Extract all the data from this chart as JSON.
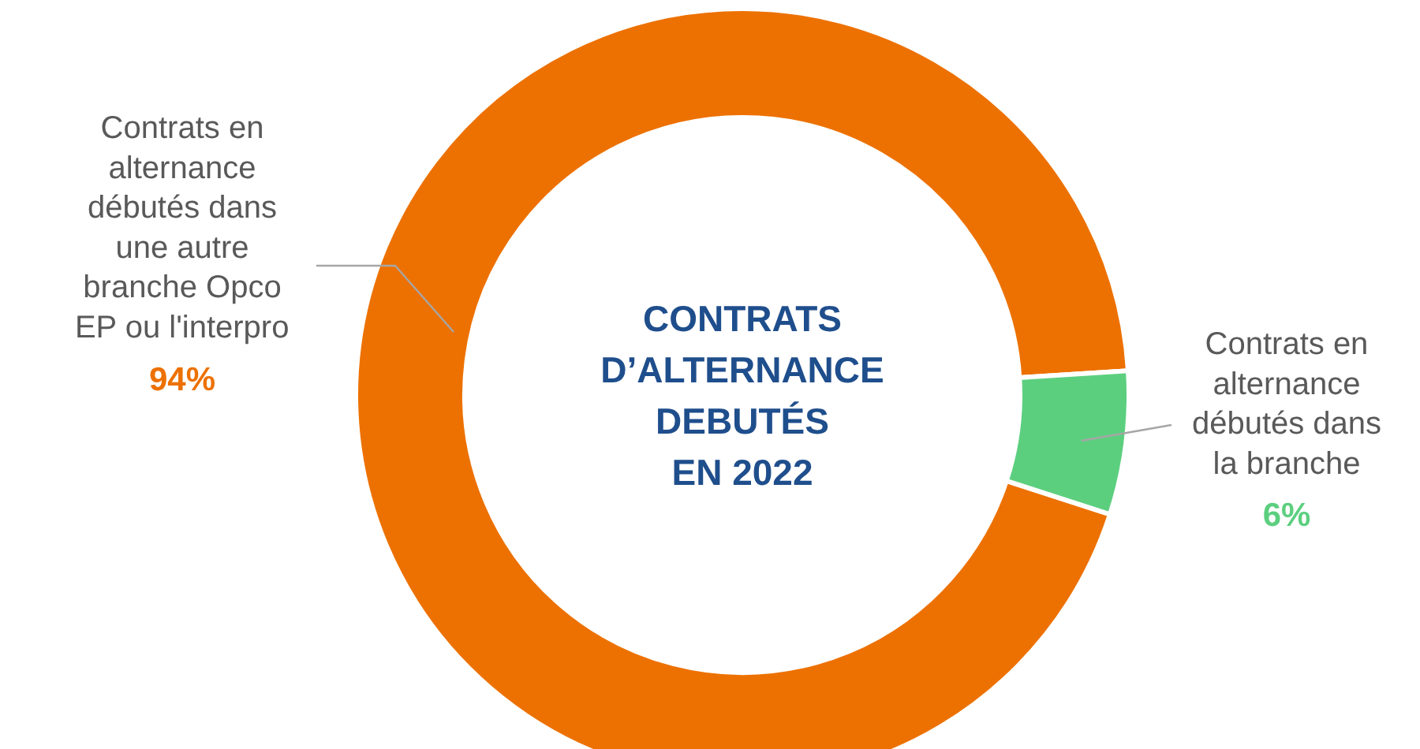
{
  "chart_data": {
    "type": "donut",
    "title": "CONTRATS\nD’ALTERNANCE\nDEBUTÉS\nEN 2022",
    "categories": [
      "Contrats en\nalternance\ndébutés dans\nune autre\nbranche Opco\nEP ou l'interpro",
      "Contrats en\nalternance\ndébutés dans\nla branche"
    ],
    "values": [
      94,
      6
    ],
    "colors": [
      "#ed7100",
      "#5ccf7f"
    ],
    "value_labels": [
      "94%",
      "6%"
    ]
  }
}
